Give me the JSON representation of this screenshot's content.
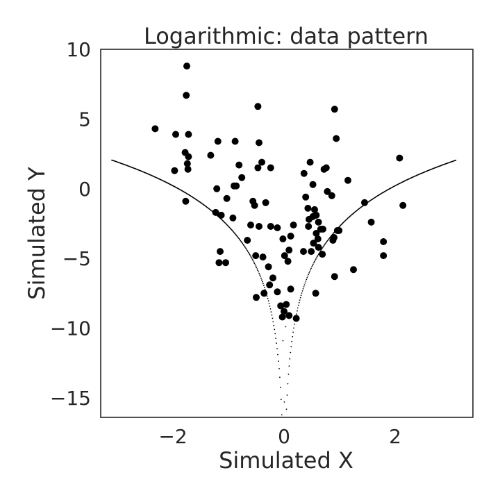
{
  "chart_data": {
    "type": "scatter",
    "title": "Logarithmic: data pattern",
    "xlabel": "Simulated X",
    "ylabel": "Simulated Y",
    "xlim": [
      -3.3,
      3.4
    ],
    "ylim": [
      -16.4,
      10.0
    ],
    "xticks": [
      -2,
      0,
      2
    ],
    "yticks": [
      10,
      5,
      0,
      -5,
      -10,
      -15
    ],
    "xtick_labels": [
      "−2",
      "0",
      "2"
    ],
    "ytick_labels": [
      "10",
      "5",
      "0",
      "−5",
      "−10",
      "−15"
    ],
    "grid": false,
    "legend": "none",
    "colors": {
      "points": "#000000",
      "frame": "#262626",
      "trend": "#000000"
    },
    "series": [
      {
        "kind": "points",
        "x": [
          -1.75,
          -1.76,
          -1.72,
          -1.95,
          -1.72,
          -1.78,
          -1.74,
          -1.73,
          -1.97,
          -1.77,
          -2.32,
          -1.19,
          -1.32,
          -0.88,
          -0.9,
          -1.21,
          -1.03,
          -1.13,
          -1.23,
          -0.92,
          -1.15,
          -1.17,
          -1.05,
          -0.86,
          -0.76,
          -0.81,
          -0.47,
          -0.45,
          -0.4,
          -0.24,
          -0.47,
          -0.56,
          -0.53,
          -0.33,
          -0.24,
          -0.12,
          -0.02,
          0.01,
          0.09,
          -0.45,
          -0.6,
          -0.66,
          -0.51,
          -0.38,
          -0.28,
          -0.2,
          -0.26,
          -0.36,
          -0.12,
          -0.06,
          -0.03,
          0.0,
          0.04,
          0.09,
          0.07,
          0.12,
          0.17,
          0.12,
          0.22,
          0.36,
          0.39,
          0.43,
          0.47,
          0.52,
          0.45,
          0.52,
          0.55,
          0.58,
          0.62,
          0.66,
          0.7,
          0.72,
          0.76,
          0.78,
          0.86,
          0.91,
          0.94,
          0.99,
          0.58,
          0.62,
          0.69,
          0.57,
          0.53,
          0.91,
          0.9,
          0.88,
          0.96,
          1.15,
          1.45,
          1.57,
          1.79,
          1.79,
          2.08,
          2.14,
          1.25,
          0.61,
          -0.5,
          0.35,
          0.49,
          0.44
        ],
        "y": [
          8.8,
          6.7,
          3.9,
          3.9,
          2.3,
          2.6,
          1.8,
          1.4,
          1.3,
          -0.9,
          4.3,
          3.4,
          2.4,
          3.4,
          0.2,
          0.0,
          -0.7,
          -1.9,
          -1.7,
          -2.1,
          -4.5,
          -5.3,
          -5.3,
          0.2,
          0.8,
          1.7,
          5.9,
          3.3,
          1.9,
          1.5,
          1.5,
          -0.9,
          -1.2,
          -1.0,
          -2.7,
          -2.8,
          -3.6,
          -4.8,
          -4.4,
          -2.7,
          -2.6,
          -3.7,
          -4.8,
          -4.9,
          -5.6,
          -6.4,
          -6.9,
          -7.5,
          -7.4,
          -8.4,
          -9.2,
          -8.8,
          -8.3,
          -9.1,
          -5.2,
          -3.4,
          -2.6,
          -7.2,
          -9.3,
          1.1,
          -0.6,
          -1.4,
          1.9,
          0.3,
          -2.2,
          -2.0,
          -1.5,
          -1.9,
          -2.4,
          -2.9,
          -2.9,
          1.4,
          1.5,
          -0.2,
          -0.5,
          5.7,
          3.6,
          -3.0,
          -3.2,
          -4.2,
          -4.7,
          -7.5,
          -3.9,
          -6.3,
          -3.5,
          -3.7,
          -3.0,
          0.6,
          -1.0,
          -2.4,
          -3.8,
          -4.8,
          2.2,
          -1.2,
          -5.8,
          -3.6,
          -7.8,
          -4.5,
          -4.5,
          -2.7
        ]
      },
      {
        "kind": "trend",
        "formula": "y = 2.1 * ln(x^2) - 2.7",
        "x_range": [
          -3.1,
          3.1
        ],
        "x_small": [
          0.03,
          -0.02,
          0.005
        ],
        "y_small": [
          -9.9,
          -10.9,
          -15.3
        ]
      }
    ]
  }
}
